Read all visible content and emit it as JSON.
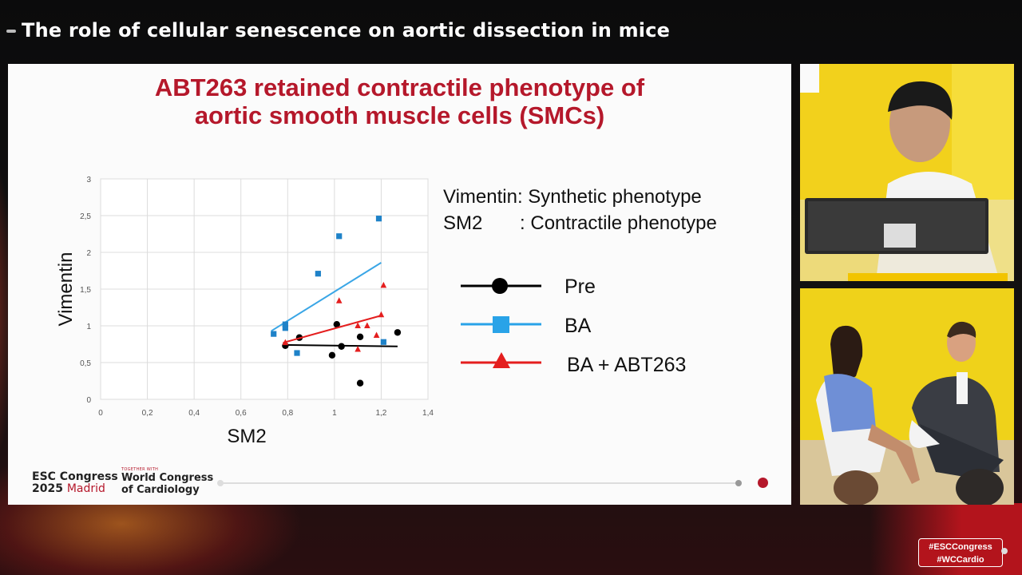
{
  "session": {
    "title": "The role of cellular senescence on aortic dissection in mice"
  },
  "slide": {
    "title_line1": "ABT263 retained contractile phenotype of",
    "title_line2": "aortic smooth muscle cells (SMCs)",
    "phenotype_line1": "Vimentin: Synthetic phenotype",
    "phenotype_line2": "SM2       : Contractile phenotype",
    "legend": [
      {
        "label": "Pre",
        "color": "#000000",
        "marker": "circle"
      },
      {
        "label": "BA",
        "color": "#29a3e8",
        "marker": "square"
      },
      {
        "label": "BA + ABT263",
        "color": "#e41e1e",
        "marker": "triangle"
      }
    ]
  },
  "chart_data": {
    "type": "scatter",
    "xlabel": "SM2",
    "ylabel": "Vimentin",
    "xlim": [
      0,
      1.4
    ],
    "ylim": [
      0,
      3
    ],
    "x_ticks": [
      "0",
      "0,2",
      "0,4",
      "0,6",
      "0,8",
      "1",
      "1,2",
      "1,4"
    ],
    "y_ticks": [
      "0",
      "0,5",
      "1",
      "1,5",
      "2",
      "2,5",
      "3"
    ],
    "grid": true,
    "series": [
      {
        "name": "Pre",
        "color": "#000000",
        "marker": "circle",
        "points": [
          [
            0.79,
            0.73
          ],
          [
            0.85,
            0.84
          ],
          [
            0.99,
            0.6
          ],
          [
            1.01,
            1.02
          ],
          [
            1.03,
            0.72
          ],
          [
            1.11,
            0.85
          ],
          [
            1.11,
            0.22
          ],
          [
            1.27,
            0.91
          ]
        ],
        "trend": [
          [
            0.78,
            0.74
          ],
          [
            1.27,
            0.72
          ]
        ]
      },
      {
        "name": "BA",
        "color": "#1e82c8",
        "marker": "square",
        "points": [
          [
            0.74,
            0.89
          ],
          [
            0.79,
            0.97
          ],
          [
            0.79,
            1.02
          ],
          [
            0.84,
            0.63
          ],
          [
            0.93,
            1.71
          ],
          [
            1.02,
            2.22
          ],
          [
            1.19,
            2.46
          ],
          [
            1.21,
            0.78
          ]
        ],
        "trend": [
          [
            0.73,
            0.93
          ],
          [
            1.2,
            1.86
          ]
        ],
        "trend_color": "#3aa6e6"
      },
      {
        "name": "BA + ABT263",
        "color": "#e41e1e",
        "marker": "triangle",
        "points": [
          [
            0.79,
            0.77
          ],
          [
            1.02,
            1.34
          ],
          [
            1.1,
            1.0
          ],
          [
            1.14,
            1.0
          ],
          [
            1.18,
            0.87
          ],
          [
            1.1,
            0.68
          ],
          [
            1.2,
            1.15
          ],
          [
            1.21,
            1.55
          ]
        ],
        "trend": [
          [
            0.78,
            0.77
          ],
          [
            1.2,
            1.14
          ]
        ]
      }
    ]
  },
  "branding": {
    "esc_line1": "ESC Congress",
    "esc_year": "2025",
    "esc_city": "Madrid",
    "together_with": "TOGETHER WITH",
    "wcc_line1": "World Congress",
    "wcc_line2": "of Cardiology"
  },
  "hashtags": {
    "line1": "#ESCCongress",
    "line2": "#WCCardio"
  },
  "colors": {
    "accent": "#b5182b",
    "camera_bg": "#f2d11c"
  }
}
